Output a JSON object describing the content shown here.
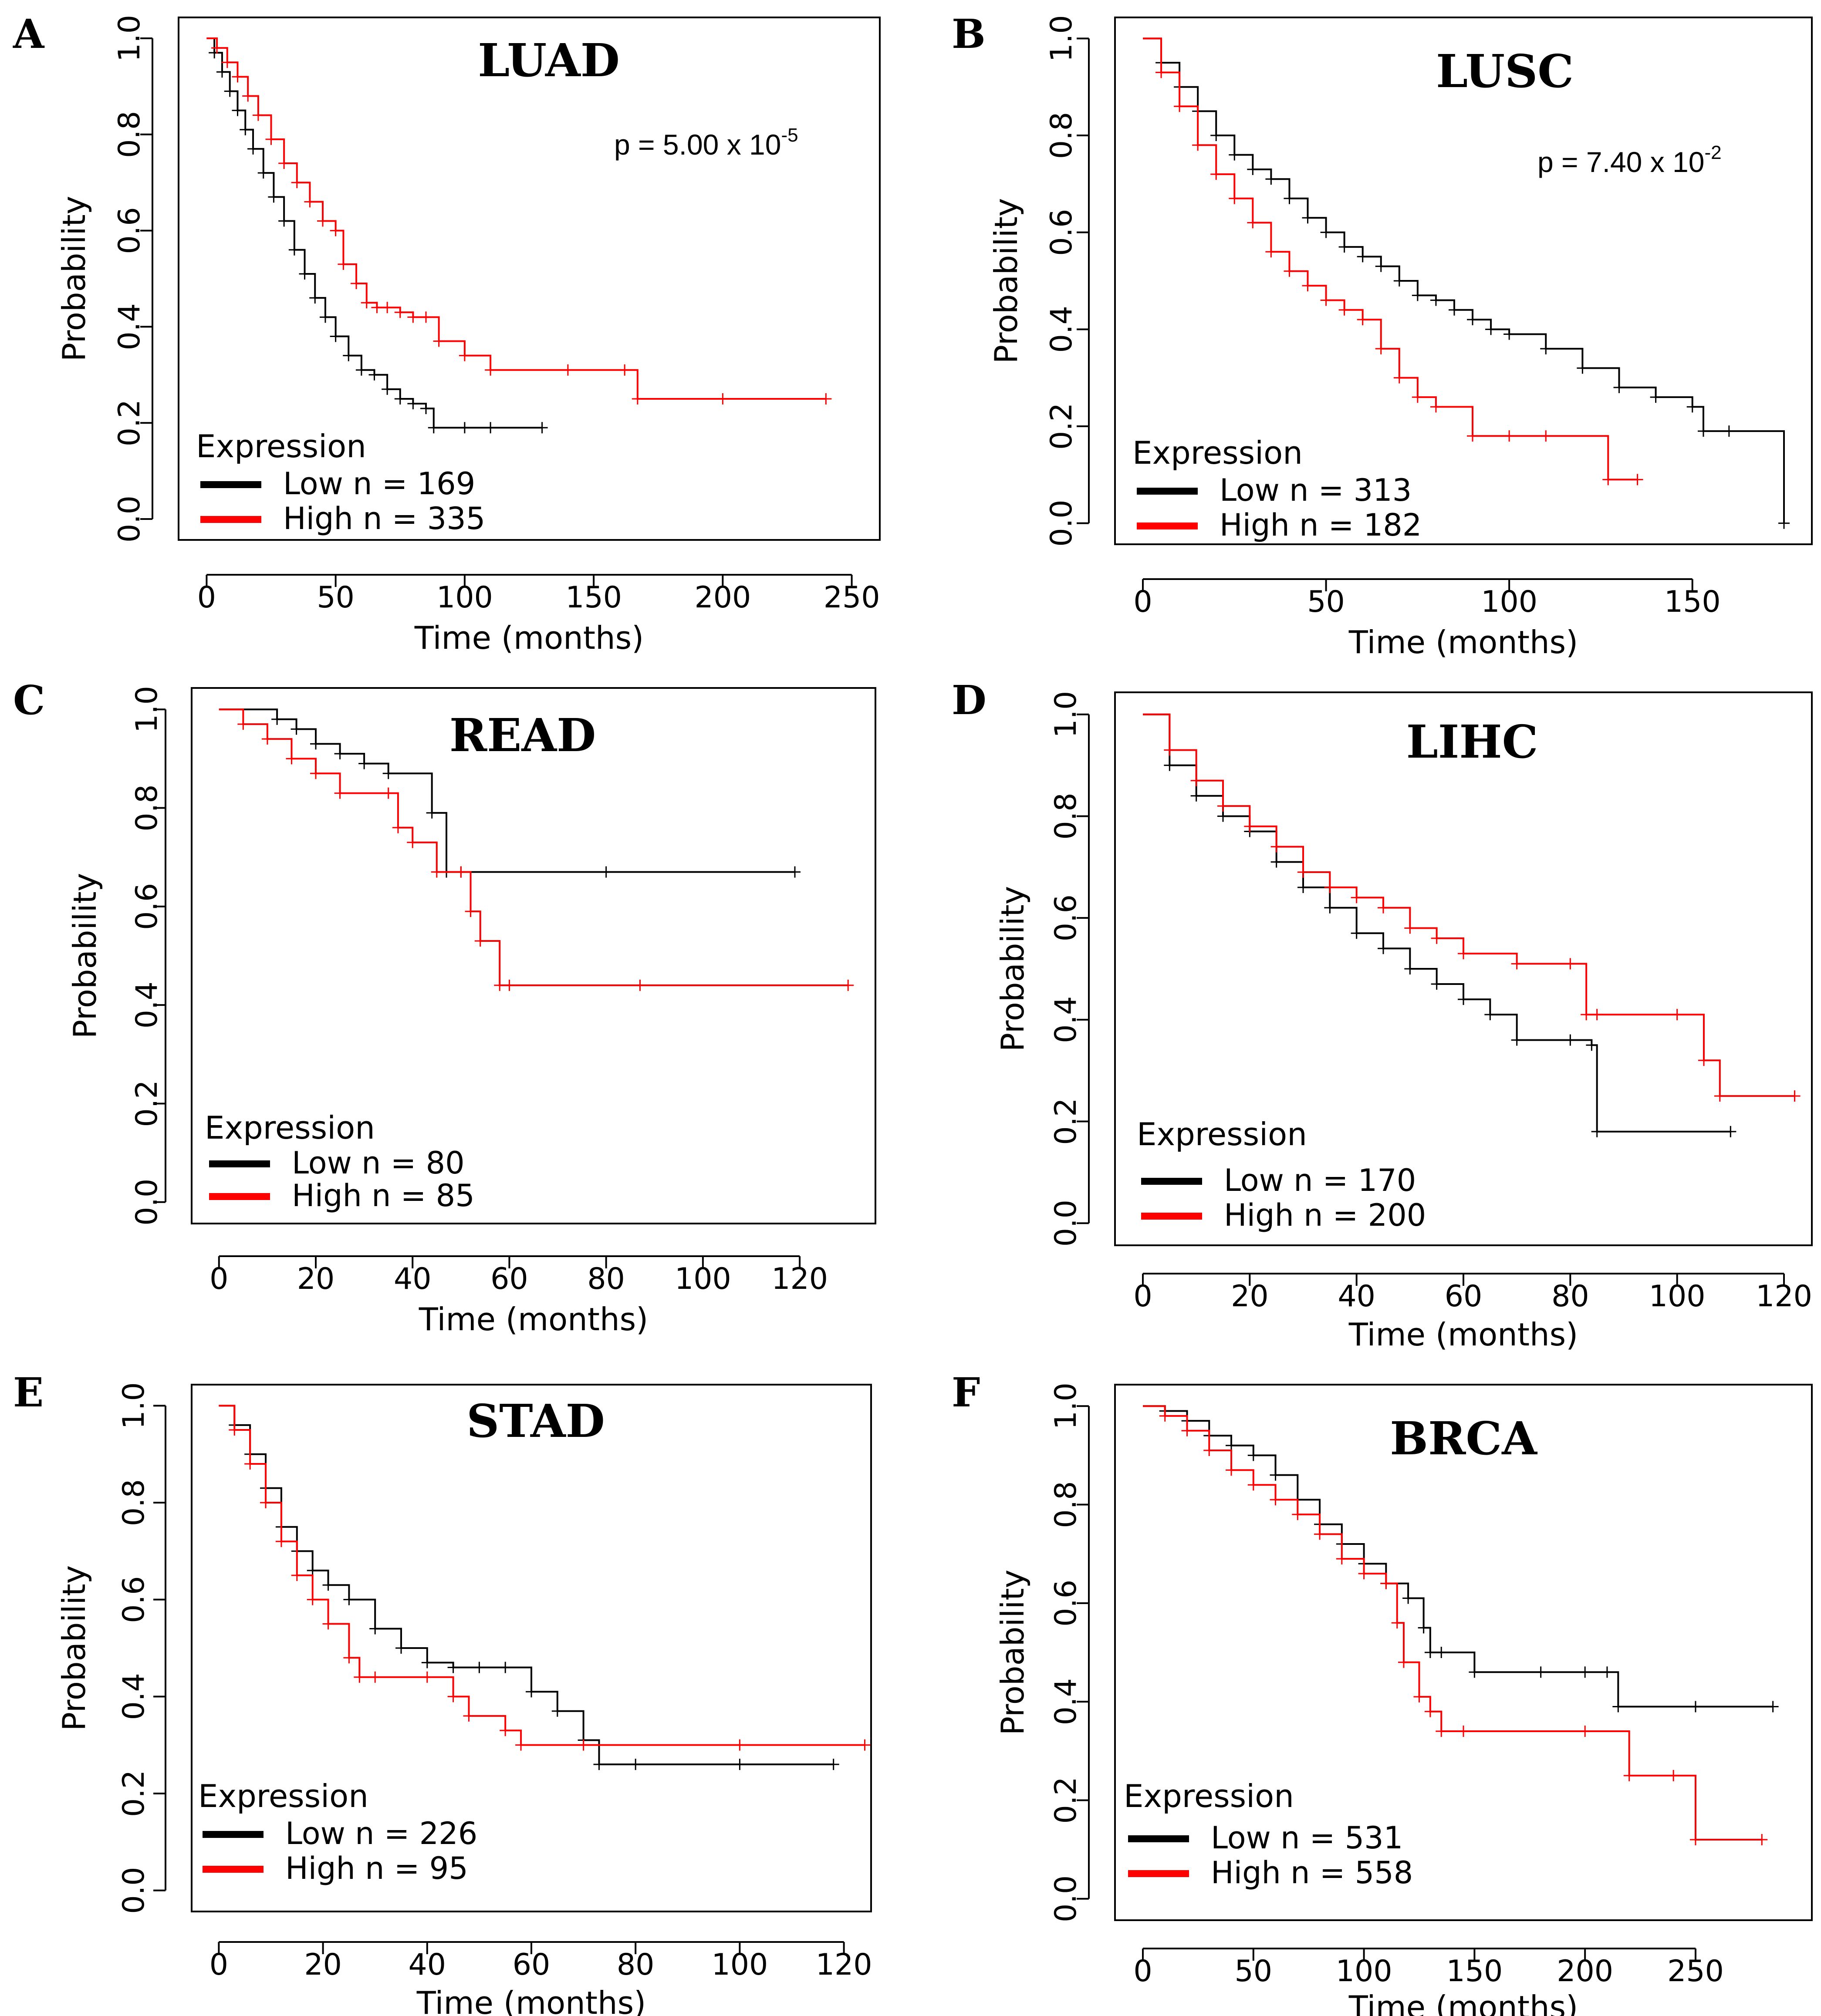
{
  "chart_data": [
    {
      "type": "line",
      "panel": "A",
      "title": "LUAD",
      "p_value": "p = 5.00 x 10",
      "p_exponent": "-5",
      "xlabel": "Time (months)",
      "ylabel": "Probability",
      "xlim": [
        0,
        250
      ],
      "ylim": [
        0,
        1
      ],
      "xticks": [
        "0",
        "50",
        "100",
        "150",
        "200",
        "250"
      ],
      "yticks": [
        "0.0",
        "0.2",
        "0.4",
        "0.6",
        "0.8",
        "1.0"
      ],
      "legend_title": "Expression",
      "colors": {
        "low": "#000000",
        "high": "#ff0000"
      },
      "series": [
        {
          "name": "Low n = 169",
          "key": "low",
          "x": [
            0,
            3,
            6,
            9,
            12,
            15,
            18,
            22,
            26,
            30,
            34,
            38,
            42,
            46,
            50,
            55,
            60,
            65,
            70,
            75,
            80,
            85,
            88,
            100,
            110,
            130
          ],
          "y": [
            1.0,
            0.97,
            0.93,
            0.89,
            0.85,
            0.81,
            0.77,
            0.72,
            0.67,
            0.62,
            0.56,
            0.51,
            0.46,
            0.42,
            0.38,
            0.34,
            0.31,
            0.3,
            0.27,
            0.25,
            0.24,
            0.23,
            0.19,
            0.19,
            0.19,
            0.19
          ]
        },
        {
          "name": "High n = 335",
          "key": "high",
          "x": [
            0,
            4,
            8,
            12,
            16,
            20,
            25,
            30,
            35,
            40,
            45,
            50,
            53,
            58,
            62,
            66,
            70,
            75,
            80,
            85,
            90,
            100,
            110,
            140,
            162,
            167,
            200,
            240
          ],
          "y": [
            1.0,
            0.98,
            0.95,
            0.92,
            0.88,
            0.84,
            0.79,
            0.74,
            0.7,
            0.66,
            0.62,
            0.6,
            0.53,
            0.49,
            0.45,
            0.44,
            0.44,
            0.43,
            0.42,
            0.42,
            0.37,
            0.34,
            0.31,
            0.31,
            0.31,
            0.25,
            0.25,
            0.25
          ]
        }
      ]
    },
    {
      "type": "line",
      "panel": "B",
      "title": "LUSC",
      "p_value": "p = 7.40 x 10",
      "p_exponent": "-2",
      "xlabel": "Time (months)",
      "ylabel": "Probability",
      "xlim": [
        0,
        175
      ],
      "ylim": [
        0,
        1
      ],
      "xticks": [
        "0",
        "50",
        "100",
        "150"
      ],
      "yticks": [
        "0.0",
        "0.2",
        "0.4",
        "0.6",
        "0.8",
        "1.0"
      ],
      "legend_title": "Expression",
      "colors": {
        "low": "#000000",
        "high": "#ff0000"
      },
      "series": [
        {
          "name": "Low n = 313",
          "key": "low",
          "x": [
            0,
            5,
            10,
            15,
            20,
            25,
            30,
            35,
            40,
            45,
            50,
            55,
            60,
            65,
            70,
            75,
            80,
            85,
            90,
            95,
            100,
            110,
            120,
            130,
            140,
            150,
            153,
            160,
            175
          ],
          "y": [
            1.0,
            0.95,
            0.9,
            0.85,
            0.8,
            0.76,
            0.73,
            0.71,
            0.67,
            0.63,
            0.6,
            0.57,
            0.55,
            0.53,
            0.5,
            0.47,
            0.46,
            0.44,
            0.42,
            0.4,
            0.39,
            0.36,
            0.32,
            0.28,
            0.26,
            0.24,
            0.19,
            0.19,
            0.0
          ]
        },
        {
          "name": "High n = 182",
          "key": "high",
          "x": [
            0,
            5,
            10,
            15,
            20,
            25,
            30,
            35,
            40,
            45,
            50,
            55,
            60,
            65,
            70,
            75,
            80,
            90,
            100,
            110,
            127,
            135
          ],
          "y": [
            1.0,
            0.93,
            0.86,
            0.78,
            0.72,
            0.67,
            0.62,
            0.56,
            0.52,
            0.49,
            0.46,
            0.44,
            0.42,
            0.36,
            0.3,
            0.26,
            0.24,
            0.18,
            0.18,
            0.18,
            0.09,
            0.09
          ]
        }
      ]
    },
    {
      "type": "line",
      "panel": "C",
      "title": "READ",
      "xlabel": "Time (months)",
      "ylabel": "Probability",
      "xlim": [
        0,
        130
      ],
      "ylim": [
        0,
        1
      ],
      "xticks": [
        "0",
        "20",
        "40",
        "60",
        "80",
        "100",
        "120"
      ],
      "yticks": [
        "0.0",
        "0.2",
        "0.4",
        "0.6",
        "0.8",
        "1.0"
      ],
      "legend_title": "Expression",
      "colors": {
        "low": "#000000",
        "high": "#ff0000"
      },
      "series": [
        {
          "name": "Low n = 80",
          "key": "low",
          "x": [
            0,
            12,
            16,
            20,
            25,
            30,
            35,
            44,
            47,
            50,
            80,
            119
          ],
          "y": [
            1.0,
            0.98,
            0.96,
            0.93,
            0.91,
            0.89,
            0.87,
            0.79,
            0.67,
            0.67,
            0.67,
            0.67
          ]
        },
        {
          "name": "High n = 85",
          "key": "high",
          "x": [
            0,
            5,
            10,
            15,
            20,
            25,
            35,
            37,
            40,
            45,
            50,
            52,
            54,
            58,
            60,
            87,
            130
          ],
          "y": [
            1.0,
            0.97,
            0.94,
            0.9,
            0.87,
            0.83,
            0.83,
            0.76,
            0.73,
            0.67,
            0.67,
            0.59,
            0.53,
            0.44,
            0.44,
            0.44,
            0.44
          ]
        }
      ]
    },
    {
      "type": "line",
      "panel": "D",
      "title": "LIHC",
      "xlabel": "Time (months)",
      "ylabel": "Probability",
      "xlim": [
        0,
        120
      ],
      "ylim": [
        0,
        1
      ],
      "xticks": [
        "0",
        "20",
        "40",
        "60",
        "80",
        "100",
        "120"
      ],
      "yticks": [
        "0.0",
        "0.2",
        "0.4",
        "0.6",
        "0.8",
        "1.0"
      ],
      "legend_title": "Expression",
      "colors": {
        "low": "#000000",
        "high": "#ff0000"
      },
      "series": [
        {
          "name": "Low n = 170",
          "key": "low",
          "x": [
            0,
            5,
            10,
            15,
            20,
            25,
            30,
            35,
            40,
            45,
            50,
            55,
            60,
            65,
            70,
            80,
            84,
            85,
            110
          ],
          "y": [
            1.0,
            0.9,
            0.84,
            0.8,
            0.77,
            0.71,
            0.66,
            0.62,
            0.57,
            0.54,
            0.5,
            0.47,
            0.44,
            0.41,
            0.36,
            0.36,
            0.35,
            0.18,
            0.18
          ]
        },
        {
          "name": "High n = 200",
          "key": "high",
          "x": [
            0,
            5,
            10,
            15,
            20,
            25,
            30,
            35,
            40,
            45,
            50,
            55,
            60,
            70,
            80,
            83,
            85,
            100,
            105,
            108,
            122
          ],
          "y": [
            1.0,
            0.93,
            0.87,
            0.82,
            0.78,
            0.74,
            0.69,
            0.66,
            0.64,
            0.62,
            0.58,
            0.56,
            0.53,
            0.51,
            0.51,
            0.41,
            0.41,
            0.41,
            0.32,
            0.25,
            0.25
          ]
        }
      ]
    },
    {
      "type": "line",
      "panel": "E",
      "title": "STAD",
      "xlabel": "Time (months)",
      "ylabel": "Probability",
      "xlim": [
        0,
        120
      ],
      "ylim": [
        0,
        1
      ],
      "xticks": [
        "0",
        "20",
        "40",
        "60",
        "80",
        "100",
        "120"
      ],
      "yticks": [
        "0.0",
        "0.2",
        "0.4",
        "0.6",
        "0.8",
        "1.0"
      ],
      "legend_title": "Expression",
      "colors": {
        "low": "#000000",
        "high": "#ff0000"
      },
      "series": [
        {
          "name": "Low n = 226",
          "key": "low",
          "x": [
            0,
            3,
            6,
            9,
            12,
            15,
            18,
            21,
            25,
            30,
            35,
            40,
            45,
            50,
            55,
            60,
            65,
            70,
            73,
            80,
            100,
            118
          ],
          "y": [
            1.0,
            0.96,
            0.9,
            0.83,
            0.75,
            0.7,
            0.66,
            0.63,
            0.6,
            0.54,
            0.5,
            0.47,
            0.46,
            0.46,
            0.46,
            0.41,
            0.37,
            0.31,
            0.26,
            0.26,
            0.26,
            0.26
          ]
        },
        {
          "name": "High n = 95",
          "key": "high",
          "x": [
            0,
            3,
            6,
            9,
            12,
            15,
            18,
            21,
            25,
            27,
            30,
            40,
            45,
            48,
            55,
            58,
            70,
            100,
            124
          ],
          "y": [
            1.0,
            0.95,
            0.88,
            0.8,
            0.72,
            0.65,
            0.6,
            0.55,
            0.48,
            0.44,
            0.44,
            0.44,
            0.4,
            0.36,
            0.33,
            0.3,
            0.3,
            0.3,
            0.3
          ]
        }
      ]
    },
    {
      "type": "line",
      "panel": "F",
      "title": "BRCA",
      "xlabel": "Time (months)",
      "ylabel": "Probability",
      "xlim": [
        0,
        290
      ],
      "ylim": [
        0,
        1
      ],
      "xticks": [
        "0",
        "50",
        "100",
        "150",
        "200",
        "250"
      ],
      "yticks": [
        "0.0",
        "0.2",
        "0.4",
        "0.6",
        "0.8",
        "1.0"
      ],
      "legend_title": "Expression",
      "colors": {
        "low": "#000000",
        "high": "#ff0000"
      },
      "series": [
        {
          "name": "Low n = 531",
          "key": "low",
          "x": [
            0,
            10,
            20,
            30,
            40,
            50,
            60,
            70,
            80,
            90,
            100,
            110,
            120,
            127,
            130,
            135,
            150,
            180,
            200,
            210,
            215,
            250,
            285
          ],
          "y": [
            1.0,
            0.99,
            0.97,
            0.94,
            0.92,
            0.9,
            0.86,
            0.81,
            0.76,
            0.72,
            0.68,
            0.64,
            0.61,
            0.55,
            0.5,
            0.5,
            0.46,
            0.46,
            0.46,
            0.46,
            0.39,
            0.39,
            0.39
          ]
        },
        {
          "name": "High n = 558",
          "key": "high",
          "x": [
            0,
            10,
            20,
            30,
            40,
            50,
            60,
            70,
            80,
            90,
            100,
            110,
            115,
            118,
            125,
            130,
            135,
            145,
            200,
            220,
            240,
            250,
            280
          ],
          "y": [
            1.0,
            0.98,
            0.95,
            0.91,
            0.87,
            0.84,
            0.81,
            0.78,
            0.74,
            0.69,
            0.66,
            0.64,
            0.56,
            0.48,
            0.41,
            0.38,
            0.34,
            0.34,
            0.34,
            0.25,
            0.25,
            0.12,
            0.12
          ]
        }
      ]
    }
  ]
}
